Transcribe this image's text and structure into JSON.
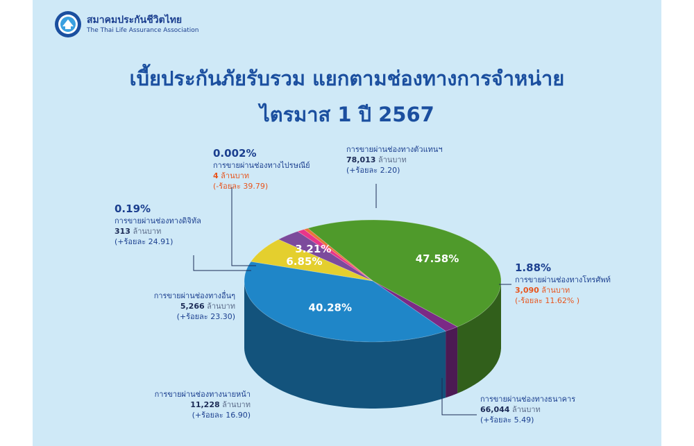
{
  "header": {
    "org_name_th": "สมาคมประกันชีวิตไทย",
    "org_name_en": "The Thai Life Assurance Association",
    "title_line1": "เบี้ยประกันภัยรับรวม แยกตามช่องทางการจำหน่าย",
    "title_line2": "ไตรมาส 1 ปี 2567"
  },
  "chart_data": {
    "type": "pie",
    "title": "เบี้ยประกันภัยรับรวม แยกตามช่องทางการจำหน่าย ไตรมาส 1 ปี 2567",
    "unit": "ล้านบาท",
    "slices": [
      {
        "key": "agent",
        "label": "การขายผ่านช่องทางตัวแทนฯ",
        "percent_label": "47.58%",
        "share": 47.58,
        "value": "78,013",
        "change": "(+ร้อยละ 2.20)",
        "negative": false,
        "color": "#4f9a2b"
      },
      {
        "key": "telephone",
        "label": "การขายผ่านช่องทางโทรศัพท์",
        "percent_label": "1.88%",
        "share": 1.88,
        "value": "3,090",
        "change": "(-ร้อยละ 11.62% )",
        "negative": true,
        "color": "#7b2a86"
      },
      {
        "key": "bank",
        "label": "การขายผ่านช่องทางธนาคาร",
        "percent_label": "40.28%",
        "share": 40.28,
        "value": "66,044",
        "change": "(+ร้อยละ 5.49)",
        "negative": false,
        "color": "#1f86c8"
      },
      {
        "key": "broker",
        "label": "การขายผ่านช่องทางนายหน้า",
        "percent_label": "6.85%",
        "share": 6.85,
        "value": "11,228",
        "change": "(+ร้อยละ 16.90)",
        "negative": false,
        "color": "#e4cf2e"
      },
      {
        "key": "other",
        "label": "การขายผ่านช่องทางอื่นๆ",
        "percent_label": "3.21%",
        "share": 3.21,
        "value": "5,266",
        "change": "(+ร้อยละ 23.30)",
        "negative": false,
        "color": "#7c4a9c"
      },
      {
        "key": "digital",
        "label": "การขายผ่านช่องทางดิจิทัล",
        "percent_label": "0.19%",
        "share": 0.19,
        "value": "313",
        "change": "(+ร้อยละ 24.91)",
        "negative": false,
        "color": "#e8358a"
      },
      {
        "key": "postal",
        "label": "การขายผ่านช่องทางไปรษณีย์",
        "percent_label": "0.002%",
        "share": 0.002,
        "value": "4",
        "change": "(-ร้อยละ 39.79)",
        "negative": true,
        "color": "#e8733a"
      }
    ]
  }
}
